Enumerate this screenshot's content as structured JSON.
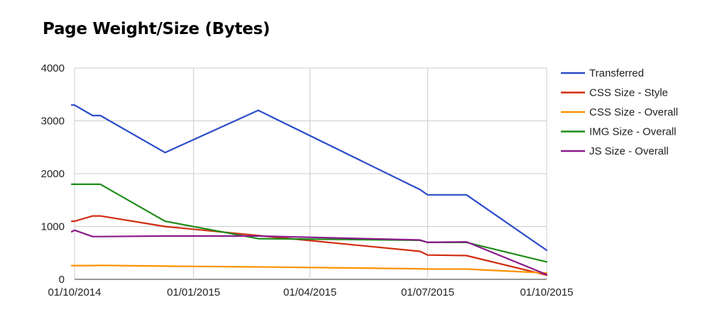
{
  "chart_data": {
    "type": "line",
    "title": "Page Weight/Size (Bytes)",
    "xlabel": "",
    "ylabel": "",
    "x_type": "date",
    "xlim": [
      "2014-10-01",
      "2015-10-01"
    ],
    "ylim": [
      0,
      4000
    ],
    "x_ticks": [
      "2014-10-01",
      "2015-01-01",
      "2015-04-01",
      "2015-07-01",
      "2015-10-01"
    ],
    "x_tick_labels": [
      "01/10/2014",
      "01/01/2015",
      "01/04/2015",
      "01/07/2015",
      "01/10/2015"
    ],
    "y_ticks": [
      0,
      1000,
      2000,
      3000,
      4000
    ],
    "y_tick_labels": [
      "0",
      "1000",
      "2000",
      "3000",
      "4000"
    ],
    "grid": true,
    "legend_position": "right",
    "series": [
      {
        "name": "Transferred",
        "color": "#2a4cc8",
        "points": [
          [
            "2014-09-25",
            3300
          ],
          [
            "2014-10-01",
            3300
          ],
          [
            "2014-10-15",
            3100
          ],
          [
            "2014-10-21",
            3100
          ],
          [
            "2014-12-10",
            2400
          ],
          [
            "2015-02-20",
            3200
          ],
          [
            "2015-06-25",
            1700
          ],
          [
            "2015-07-01",
            1600
          ],
          [
            "2015-07-31",
            1600
          ],
          [
            "2015-10-01",
            550
          ]
        ]
      },
      {
        "name": "CSS Size - Style",
        "color": "#d12c10",
        "points": [
          [
            "2014-09-25",
            1100
          ],
          [
            "2014-10-01",
            1100
          ],
          [
            "2014-10-15",
            1200
          ],
          [
            "2014-10-21",
            1200
          ],
          [
            "2014-12-10",
            1000
          ],
          [
            "2015-02-20",
            830
          ],
          [
            "2015-06-25",
            530
          ],
          [
            "2015-07-01",
            460
          ],
          [
            "2015-07-31",
            450
          ],
          [
            "2015-10-01",
            80
          ]
        ]
      },
      {
        "name": "CSS Size - Overall",
        "color": "#fb9200",
        "points": [
          [
            "2014-09-25",
            260
          ],
          [
            "2014-10-01",
            260
          ],
          [
            "2014-10-15",
            260
          ],
          [
            "2014-10-21",
            265
          ],
          [
            "2014-12-10",
            250
          ],
          [
            "2015-02-20",
            235
          ],
          [
            "2015-06-25",
            200
          ],
          [
            "2015-07-01",
            195
          ],
          [
            "2015-07-31",
            195
          ],
          [
            "2015-10-01",
            120
          ]
        ]
      },
      {
        "name": "IMG Size - Overall",
        "color": "#1e8c1a",
        "points": [
          [
            "2014-09-25",
            1800
          ],
          [
            "2014-10-01",
            1800
          ],
          [
            "2014-10-15",
            1800
          ],
          [
            "2014-10-21",
            1800
          ],
          [
            "2014-12-10",
            1100
          ],
          [
            "2015-02-20",
            770
          ],
          [
            "2015-06-25",
            740
          ],
          [
            "2015-07-01",
            700
          ],
          [
            "2015-07-31",
            700
          ],
          [
            "2015-10-01",
            330
          ]
        ]
      },
      {
        "name": "JS Size - Overall",
        "color": "#8a1a8a",
        "points": [
          [
            "2014-09-25",
            900
          ],
          [
            "2014-10-01",
            930
          ],
          [
            "2014-10-15",
            810
          ],
          [
            "2014-10-21",
            810
          ],
          [
            "2014-12-10",
            820
          ],
          [
            "2015-02-20",
            820
          ],
          [
            "2015-06-25",
            745
          ],
          [
            "2015-07-01",
            700
          ],
          [
            "2015-07-31",
            710
          ],
          [
            "2015-10-01",
            90
          ]
        ]
      }
    ]
  }
}
